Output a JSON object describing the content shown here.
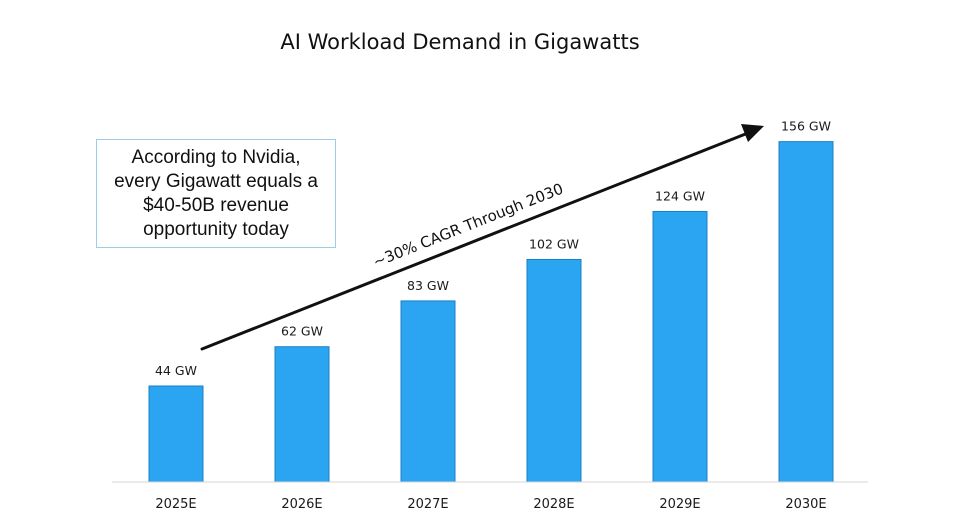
{
  "chart_data": {
    "type": "bar",
    "title": "AI Workload Demand in Gigawatts",
    "categories": [
      "2025E",
      "2026E",
      "2027E",
      "2028E",
      "2029E",
      "2030E"
    ],
    "values": [
      44,
      62,
      83,
      102,
      124,
      156
    ],
    "data_labels": [
      "44 GW",
      "62 GW",
      "83 GW",
      "102 GW",
      "124 GW",
      "156 GW"
    ],
    "unit": "GW",
    "ylim": [
      0,
      165
    ],
    "grid": false,
    "bar_color": "#2ba4f2",
    "annotations": {
      "arrow_label": "~30% CAGR Through 2030",
      "callout": "According to Nvidia,\nevery Gigawatt equals a\n$40-50B revenue\nopportunity today",
      "callout_border_color": "#9fcde9"
    }
  }
}
